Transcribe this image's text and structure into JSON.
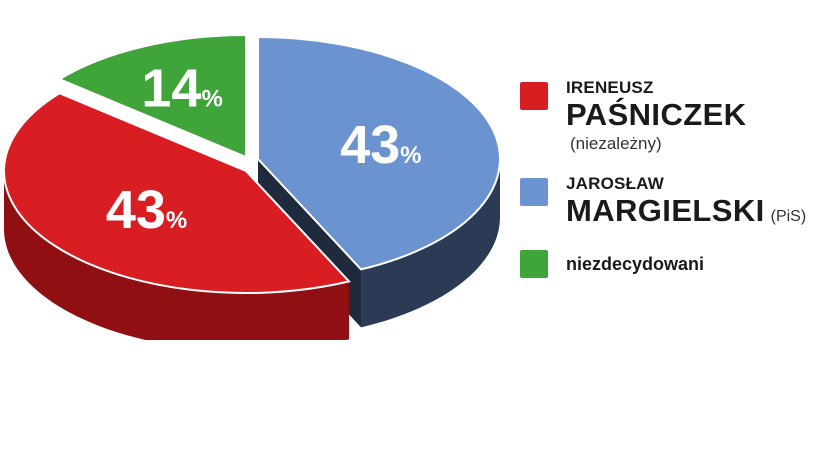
{
  "chart_data": {
    "type": "pie",
    "title": "",
    "slices": [
      {
        "label": "IRENEUSZ PAŚNICZEK (niezależny)",
        "value": 43,
        "value_label": "43",
        "color": "#d81e22",
        "side_color": "#8f0f12"
      },
      {
        "label": "JAROSŁAW MARGIELSKI (PiS)",
        "value": 43,
        "value_label": "43",
        "color": "#6b93d0",
        "side_color": "#2b3a55"
      },
      {
        "label": "niezdecydowani",
        "value": 14,
        "value_label": "14",
        "color": "#3fa43a",
        "side_color": "#226b20"
      }
    ],
    "percent_sign": "%",
    "legend_position": "right"
  },
  "legend": {
    "items": [
      {
        "first": "IRENEUSZ",
        "last": "PAŚNICZEK",
        "party": "(niezależny)",
        "color": "#d81e22"
      },
      {
        "first": "JAROSŁAW",
        "last": "MARGIELSKI",
        "party": "(PiS)",
        "color": "#6b93d0"
      },
      {
        "single": "niezdecydowani",
        "color": "#3fa43a"
      }
    ]
  }
}
